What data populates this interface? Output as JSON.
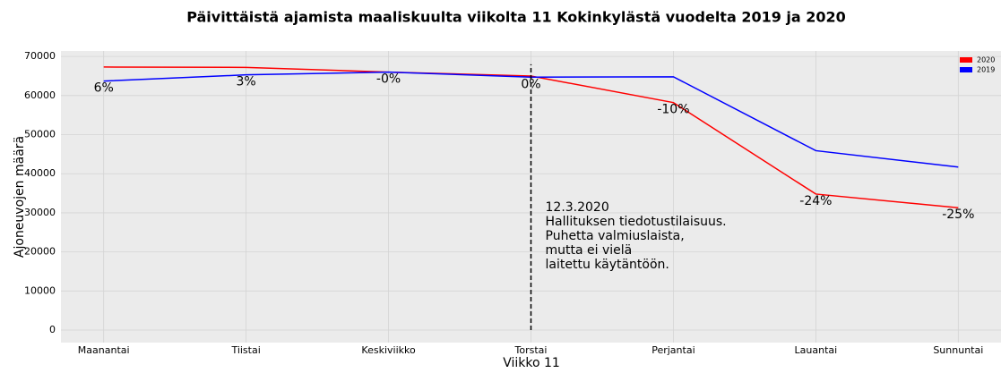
{
  "chart_data": {
    "type": "line",
    "title": "Päivittäistä ajamista maaliskuulta viikolta 11 Kokinkylästä vuodelta 2019 ja 2020",
    "xlabel": "Viikko 11",
    "ylabel": "Ajoneuvojen määrä",
    "categories": [
      "Maanantai",
      "Tiistai",
      "Keskiviikko",
      "Torstai",
      "Perjantai",
      "Lauantai",
      "Sunnuntai"
    ],
    "series": [
      {
        "name": "2020",
        "color": "#ff0000",
        "values": [
          67300,
          67200,
          66000,
          65000,
          58200,
          34800,
          31300
        ]
      },
      {
        "name": "2019",
        "color": "#0000ff",
        "values": [
          63700,
          65300,
          66000,
          64700,
          64800,
          45900,
          41700
        ]
      }
    ],
    "change_labels": [
      "6%",
      "3%",
      "-0%",
      "0%",
      "-10%",
      "-24%",
      "-25%"
    ],
    "annotation": {
      "at": "Torstai",
      "lines": [
        "12.3.2020",
        "Hallituksen tiedotustilaisuus.",
        "Puhetta valmiuslaista,",
        "mutta ei vielä",
        "laitettu käytäntöön."
      ]
    },
    "ylim": [
      -3200,
      71400
    ],
    "yticks": [
      0,
      10000,
      20000,
      30000,
      40000,
      50000,
      60000,
      70000
    ],
    "grid": true,
    "legend": "upper right"
  }
}
